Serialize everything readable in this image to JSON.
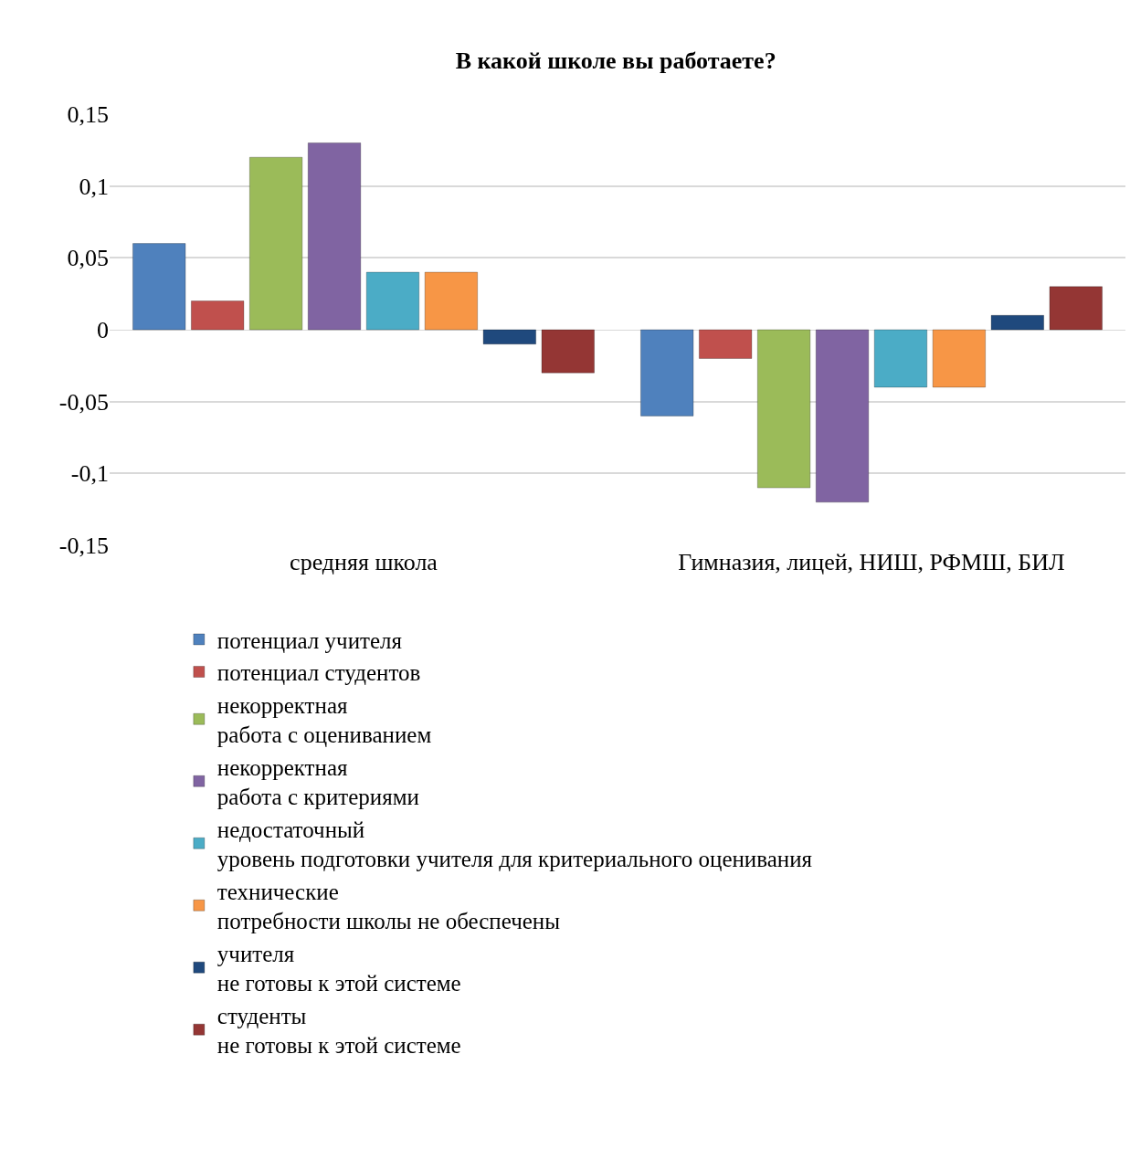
{
  "chart_data": {
    "type": "bar",
    "title": "В какой школе вы работаете?",
    "categories": [
      "средняя школа",
      "Гимназия, лицей, НИШ, РФМШ, БИЛ"
    ],
    "series": [
      {
        "name": "потенциал учителя",
        "color": "#4f81bd",
        "values": [
          0.06,
          -0.06
        ]
      },
      {
        "name": "потенциал студентов",
        "color": "#c0504d",
        "values": [
          0.02,
          -0.02
        ]
      },
      {
        "name": "некорректная\nработа с оцениванием",
        "color": "#9bbb59",
        "values": [
          0.12,
          -0.11
        ]
      },
      {
        "name": "некорректная\nработа с критериями",
        "color": "#8064a2",
        "values": [
          0.13,
          -0.12
        ]
      },
      {
        "name": "недостаточный\nуровень подготовки учителя для критериального оценивания",
        "color": "#4bacc6",
        "values": [
          0.04,
          -0.04
        ]
      },
      {
        "name": "технические\nпотребности школы не обеспечены",
        "color": "#f79646",
        "values": [
          0.04,
          -0.04
        ]
      },
      {
        "name": "учителя\nне готовы к этой системе",
        "color": "#1f497d",
        "values": [
          -0.01,
          0.01
        ]
      },
      {
        "name": "студенты\nне готовы к этой системе",
        "color": "#943634",
        "values": [
          -0.03,
          0.03
        ]
      }
    ],
    "ylim": [
      -0.15,
      0.15
    ],
    "yticks": [
      {
        "value": -0.15,
        "label": "-0,15"
      },
      {
        "value": -0.1,
        "label": "-0,1"
      },
      {
        "value": -0.05,
        "label": "-0,05"
      },
      {
        "value": 0,
        "label": "0"
      },
      {
        "value": 0.05,
        "label": "0,05"
      },
      {
        "value": 0.1,
        "label": "0,1"
      },
      {
        "value": 0.15,
        "label": "0,15"
      }
    ],
    "grid": "y",
    "legend": "bottom"
  }
}
